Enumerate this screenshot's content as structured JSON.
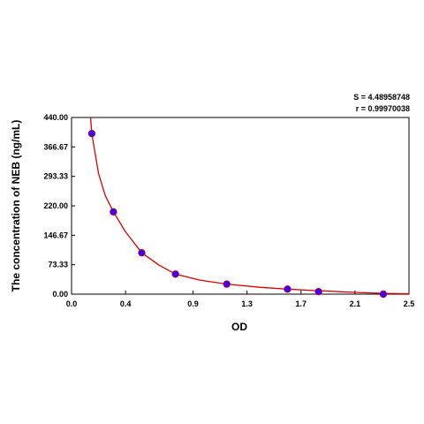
{
  "chart_data": {
    "type": "scatter",
    "xlabel": "OD",
    "ylabel": "The concentration of NEB (ng/mL)",
    "xlim": [
      0.0,
      2.5
    ],
    "ylim": [
      0.0,
      440.0
    ],
    "x_ticks": [
      "0.0",
      "0.4",
      "0.9",
      "1.3",
      "1.7",
      "2.1",
      "2.5"
    ],
    "y_ticks": [
      "0.00",
      "73.33",
      "146.67",
      "220.00",
      "293.33",
      "366.67",
      "440.00"
    ],
    "stats": [
      "S = 4.48958748",
      "r = 0.99970038"
    ],
    "grid": false,
    "series": [
      {
        "kind": "points",
        "color": "#3300ff",
        "x": [
          0.15,
          0.31,
          0.52,
          0.77,
          1.15,
          1.6,
          1.83,
          2.31
        ],
        "y": [
          400,
          205,
          103,
          50,
          25,
          12.5,
          6.25,
          0
        ]
      },
      {
        "kind": "fitted-curve",
        "color": "#dd0000",
        "x": [
          0.14,
          0.15,
          0.2,
          0.25,
          0.31,
          0.4,
          0.52,
          0.65,
          0.77,
          0.95,
          1.15,
          1.4,
          1.6,
          1.83,
          2.1,
          2.31,
          2.5
        ],
        "y": [
          445,
          400,
          300,
          245,
          205,
          155,
          103,
          72,
          50,
          35,
          25,
          17,
          12.5,
          8.5,
          4.5,
          2,
          1
        ]
      }
    ]
  }
}
